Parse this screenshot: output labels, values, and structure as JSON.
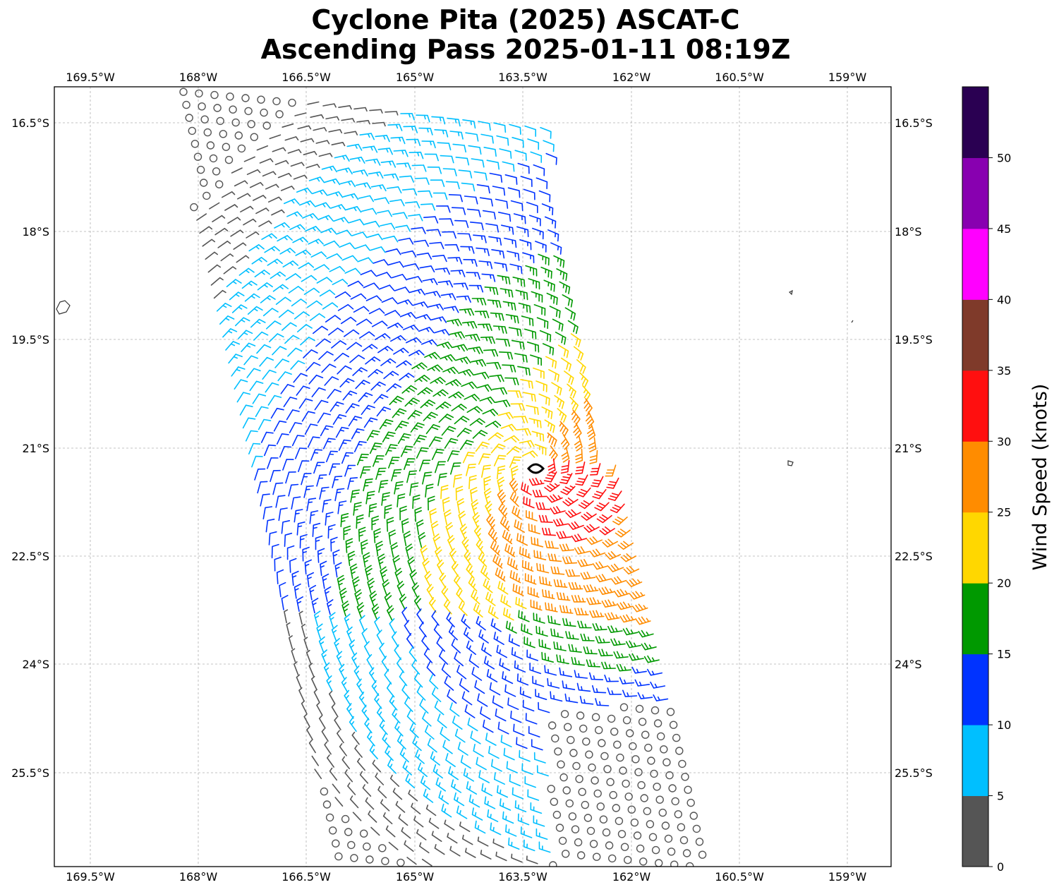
{
  "title_line1": "Cyclone Pita (2025) ASCAT-C",
  "title_line2": "Ascending Pass 2025-01-11 08:19Z",
  "map": {
    "lon_ticks": [
      "169.5°W",
      "168°W",
      "166.5°W",
      "165°W",
      "163.5°W",
      "162°W",
      "160.5°W",
      "159°W"
    ],
    "lat_ticks": [
      "16.5°S",
      "18°S",
      "19.5°S",
      "21°S",
      "22.5°S",
      "24°S",
      "25.5°S"
    ],
    "grid": true
  },
  "colorbar": {
    "label": "Wind Speed (knots)",
    "ticks": [
      "0",
      "5",
      "10",
      "15",
      "20",
      "25",
      "30",
      "35",
      "40",
      "45",
      "50"
    ],
    "colors": [
      "#555555",
      "#00bfff",
      "#0033ff",
      "#009900",
      "#ffd700",
      "#ff8c00",
      "#ff0f0f",
      "#7f3a2a",
      "#ff00ff",
      "#8800b0",
      "#2a0052"
    ]
  },
  "chart_data": {
    "type": "wind barbs",
    "units": "knots",
    "center_marker": "cyclone center near 21.3°S 163.4°W",
    "speed_bins": [
      {
        "range": "0-5",
        "color": "#555555"
      },
      {
        "range": "5-10",
        "color": "#00bfff"
      },
      {
        "range": "10-15",
        "color": "#0033ff"
      },
      {
        "range": "15-20",
        "color": "#009900"
      },
      {
        "range": "20-25",
        "color": "#ffd700"
      },
      {
        "range": "25-30",
        "color": "#ff8c00"
      },
      {
        "range": "30-35",
        "color": "#ff0f0f"
      }
    ]
  }
}
